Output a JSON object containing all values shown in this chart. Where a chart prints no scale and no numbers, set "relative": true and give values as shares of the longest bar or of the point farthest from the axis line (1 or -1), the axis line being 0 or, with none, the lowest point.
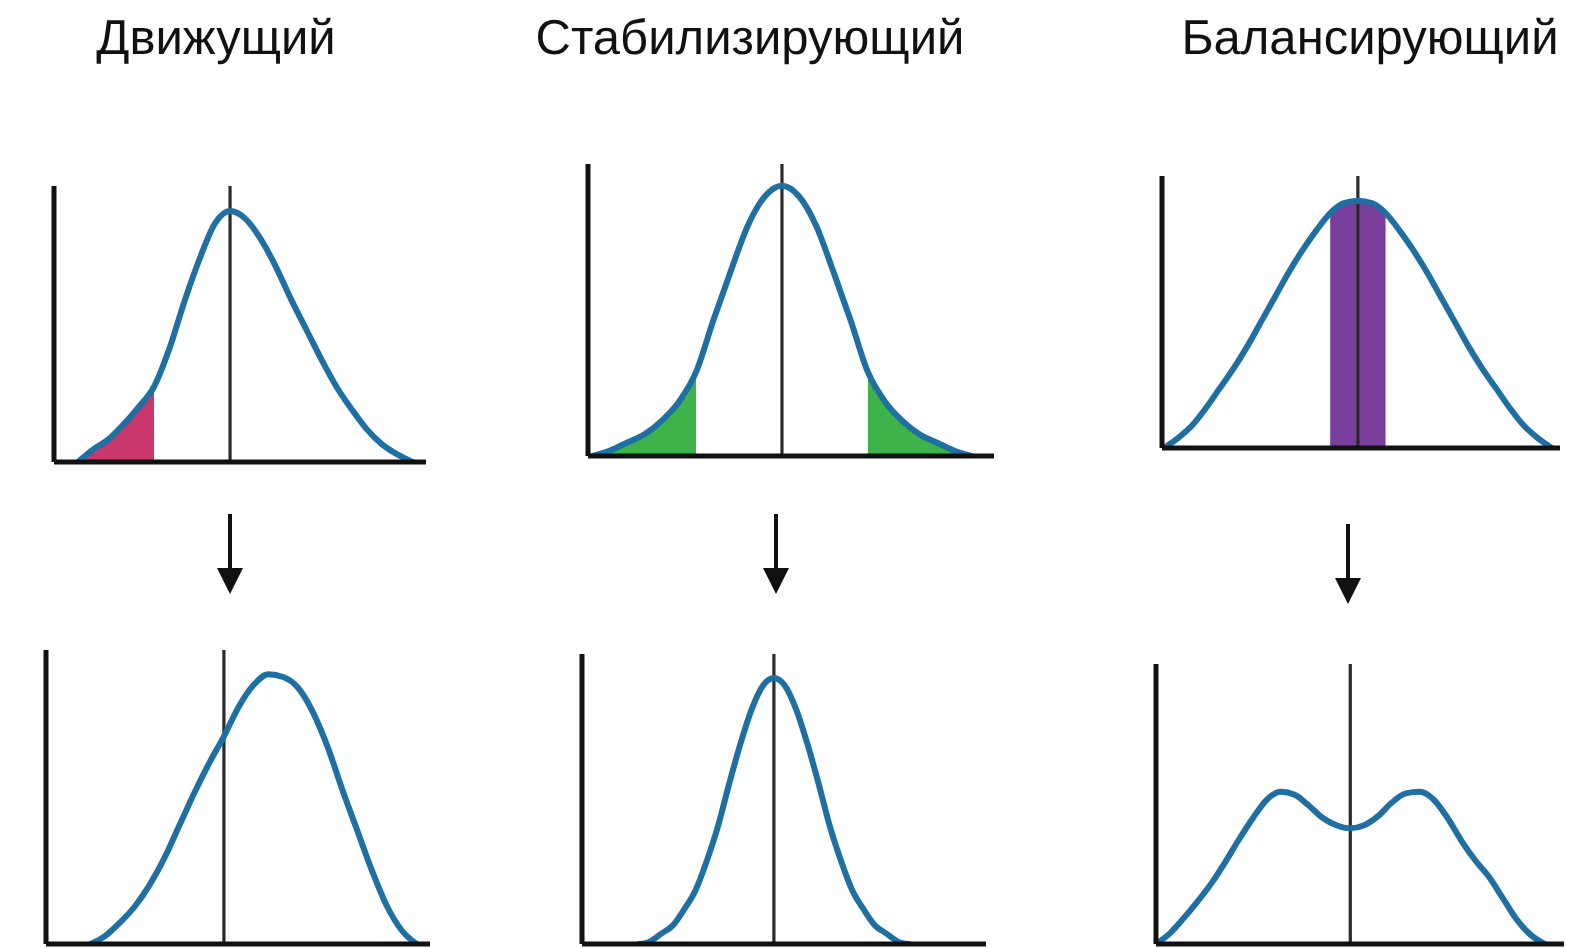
{
  "chart_data": [
    {
      "type": "line",
      "title": "Движущий",
      "relative": true,
      "categories": [
        null,
        null,
        null,
        null,
        null,
        null,
        null,
        null,
        null,
        null,
        null,
        null,
        null,
        null,
        null,
        null,
        null,
        null,
        null,
        null,
        null,
        null,
        null
      ],
      "series": [
        {
          "type": "line",
          "color": "#1f6fa3",
          "values": [
            0.0,
            0.05,
            0.09,
            0.15,
            0.22,
            0.3,
            0.45,
            0.64,
            0.81,
            0.95,
            1.0,
            0.97,
            0.89,
            0.78,
            0.65,
            0.53,
            0.41,
            0.3,
            0.21,
            0.13,
            0.07,
            0.03,
            0.0
          ]
        },
        {
          "type": "area",
          "color": "#c9376c",
          "values": [
            0.0,
            0.05,
            0.09,
            0.15,
            0.22,
            0.3,
            null,
            null,
            null,
            null,
            null,
            null,
            null,
            null,
            null,
            null,
            null,
            null,
            null,
            null,
            null,
            null,
            null
          ]
        }
      ]
    },
    {
      "type": "line",
      "title": "Стабилизирующий",
      "relative": true,
      "categories": [
        null,
        null,
        null,
        null,
        null,
        null,
        null,
        null,
        null,
        null,
        null,
        null,
        null,
        null,
        null,
        null,
        null,
        null,
        null,
        null,
        null,
        null,
        null
      ],
      "series": [
        {
          "type": "line",
          "color": "#1f6fa3",
          "values": [
            0.0,
            0.02,
            0.05,
            0.08,
            0.13,
            0.2,
            0.31,
            0.5,
            0.68,
            0.85,
            0.96,
            1.0,
            0.96,
            0.85,
            0.68,
            0.5,
            0.31,
            0.2,
            0.13,
            0.08,
            0.05,
            0.02,
            0.0
          ]
        },
        {
          "type": "area",
          "color": "#3db34a",
          "values": [
            0.0,
            0.02,
            0.05,
            0.08,
            0.13,
            0.2,
            0.31,
            null,
            null,
            null,
            null,
            null,
            null,
            null,
            null,
            null,
            0.31,
            0.2,
            0.13,
            0.08,
            0.05,
            0.02,
            0.0
          ]
        }
      ]
    },
    {
      "type": "line",
      "title": "Балансирующий",
      "relative": true,
      "categories": [
        null,
        null,
        null,
        null,
        null,
        null,
        null,
        null,
        null,
        null,
        null,
        null,
        null,
        null,
        null,
        null,
        null,
        null,
        null,
        null,
        null,
        null,
        null,
        null,
        null,
        null,
        null,
        null,
        null
      ],
      "series": [
        {
          "type": "line",
          "color": "#1f6fa3",
          "values": [
            0.0,
            0.04,
            0.09,
            0.16,
            0.24,
            0.32,
            0.41,
            0.51,
            0.61,
            0.71,
            0.8,
            0.88,
            0.95,
            0.99,
            1.0,
            0.99,
            0.95,
            0.88,
            0.8,
            0.71,
            0.61,
            0.51,
            0.41,
            0.32,
            0.24,
            0.16,
            0.09,
            0.04,
            0.0
          ]
        },
        {
          "type": "area",
          "color": "#7a3e9d",
          "values": [
            null,
            null,
            null,
            null,
            null,
            null,
            null,
            null,
            null,
            null,
            null,
            null,
            0.95,
            0.99,
            1.0,
            0.99,
            0.95,
            null,
            null,
            null,
            null,
            null,
            null,
            null,
            null,
            null,
            null,
            null,
            null
          ]
        }
      ]
    },
    {
      "type": "line",
      "relative": true,
      "categories": [
        null,
        null,
        null,
        null,
        null,
        null,
        null,
        null,
        null,
        null,
        null,
        null,
        null,
        null,
        null,
        null,
        null,
        null,
        null,
        null,
        null,
        null,
        null
      ],
      "series": [
        {
          "type": "line",
          "color": "#1f6fa3",
          "values": [
            0.0,
            0.03,
            0.08,
            0.14,
            0.22,
            0.32,
            0.44,
            0.56,
            0.67,
            0.77,
            0.88,
            0.96,
            1.0,
            0.99,
            0.95,
            0.86,
            0.73,
            0.57,
            0.42,
            0.27,
            0.14,
            0.05,
            0.0
          ]
        }
      ]
    },
    {
      "type": "line",
      "relative": true,
      "categories": [
        null,
        null,
        null,
        null,
        null,
        null,
        null,
        null,
        null,
        null,
        null,
        null,
        null,
        null,
        null,
        null,
        null,
        null,
        null,
        null,
        null,
        null,
        null,
        null,
        null
      ],
      "series": [
        {
          "type": "line",
          "color": "#1f6fa3",
          "values": [
            0.0,
            0.01,
            0.04,
            0.07,
            0.13,
            0.2,
            0.31,
            0.44,
            0.6,
            0.75,
            0.88,
            0.97,
            1.0,
            0.97,
            0.88,
            0.75,
            0.6,
            0.44,
            0.31,
            0.2,
            0.13,
            0.07,
            0.04,
            0.01,
            0.0
          ]
        }
      ]
    },
    {
      "type": "line",
      "relative": true,
      "categories": [
        null,
        null,
        null,
        null,
        null,
        null,
        null,
        null,
        null,
        null,
        null,
        null,
        null,
        null,
        null,
        null,
        null,
        null,
        null,
        null,
        null,
        null,
        null,
        null,
        null,
        null,
        null,
        null,
        null
      ],
      "series": [
        {
          "type": "line",
          "color": "#1f6fa3",
          "values": [
            0.0,
            0.07,
            0.17,
            0.28,
            0.4,
            0.54,
            0.69,
            0.83,
            0.95,
            1.0,
            0.98,
            0.91,
            0.83,
            0.78,
            0.76,
            0.78,
            0.84,
            0.93,
            0.99,
            1.0,
            0.95,
            0.83,
            0.68,
            0.55,
            0.44,
            0.3,
            0.16,
            0.06,
            0.0
          ]
        }
      ]
    }
  ]
}
